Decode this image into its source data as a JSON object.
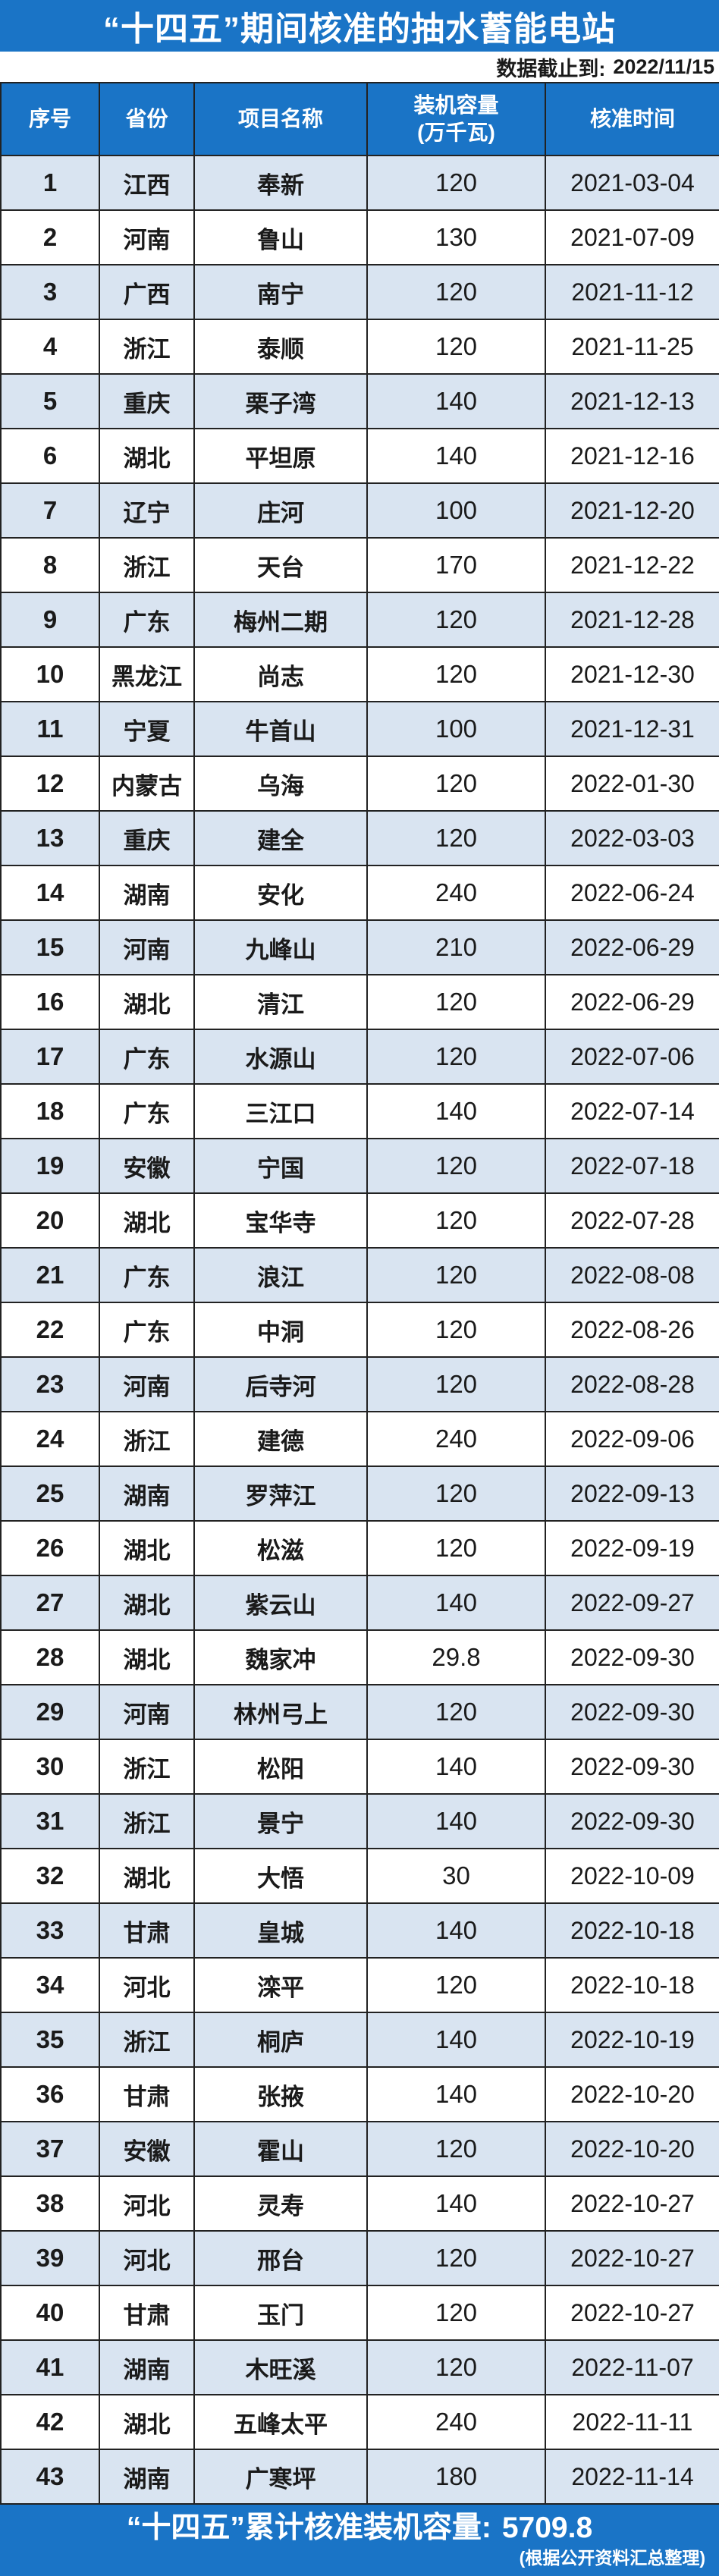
{
  "page": {
    "title": "“十四五”期间核准的抽水蓄能电站",
    "subtitle_label": "数据截止到:",
    "subtitle_value": "2022/11/15",
    "footer_total_label": "“十四五”累计核准装机容量:",
    "footer_total_value": "5709.8",
    "footer_note": "(根据公开资料汇总整理)"
  },
  "colors": {
    "primary_blue": "#1a74c6",
    "row_alt_blue": "#d9e4f1",
    "row_white": "#ffffff",
    "border_dark": "#222222",
    "text_dark": "#1a1a1a",
    "text_white": "#ffffff"
  },
  "table": {
    "headers_display": [
      "序号",
      "省份",
      "项目名称",
      "装机容量\n(万千瓦)",
      "核准时间"
    ]
  },
  "chart_data": {
    "type": "table",
    "title": "“十四五”期间核准的抽水蓄能电站",
    "data_cutoff": "2022/11/15",
    "columns": [
      "序号",
      "省份",
      "项目名称",
      "装机容量(万千瓦)",
      "核准时间"
    ],
    "rows": [
      [
        "1",
        "江西",
        "奉新",
        "120",
        "2021-03-04"
      ],
      [
        "2",
        "河南",
        "鲁山",
        "130",
        "2021-07-09"
      ],
      [
        "3",
        "广西",
        "南宁",
        "120",
        "2021-11-12"
      ],
      [
        "4",
        "浙江",
        "泰顺",
        "120",
        "2021-11-25"
      ],
      [
        "5",
        "重庆",
        "栗子湾",
        "140",
        "2021-12-13"
      ],
      [
        "6",
        "湖北",
        "平坦原",
        "140",
        "2021-12-16"
      ],
      [
        "7",
        "辽宁",
        "庄河",
        "100",
        "2021-12-20"
      ],
      [
        "8",
        "浙江",
        "天台",
        "170",
        "2021-12-22"
      ],
      [
        "9",
        "广东",
        "梅州二期",
        "120",
        "2021-12-28"
      ],
      [
        "10",
        "黑龙江",
        "尚志",
        "120",
        "2021-12-30"
      ],
      [
        "11",
        "宁夏",
        "牛首山",
        "100",
        "2021-12-31"
      ],
      [
        "12",
        "内蒙古",
        "乌海",
        "120",
        "2022-01-30"
      ],
      [
        "13",
        "重庆",
        "建全",
        "120",
        "2022-03-03"
      ],
      [
        "14",
        "湖南",
        "安化",
        "240",
        "2022-06-24"
      ],
      [
        "15",
        "河南",
        "九峰山",
        "210",
        "2022-06-29"
      ],
      [
        "16",
        "湖北",
        "清江",
        "120",
        "2022-06-29"
      ],
      [
        "17",
        "广东",
        "水源山",
        "120",
        "2022-07-06"
      ],
      [
        "18",
        "广东",
        "三江口",
        "140",
        "2022-07-14"
      ],
      [
        "19",
        "安徽",
        "宁国",
        "120",
        "2022-07-18"
      ],
      [
        "20",
        "湖北",
        "宝华寺",
        "120",
        "2022-07-28"
      ],
      [
        "21",
        "广东",
        "浪江",
        "120",
        "2022-08-08"
      ],
      [
        "22",
        "广东",
        "中洞",
        "120",
        "2022-08-26"
      ],
      [
        "23",
        "河南",
        "后寺河",
        "120",
        "2022-08-28"
      ],
      [
        "24",
        "浙江",
        "建德",
        "240",
        "2022-09-06"
      ],
      [
        "25",
        "湖南",
        "罗萍江",
        "120",
        "2022-09-13"
      ],
      [
        "26",
        "湖北",
        "松滋",
        "120",
        "2022-09-19"
      ],
      [
        "27",
        "湖北",
        "紫云山",
        "140",
        "2022-09-27"
      ],
      [
        "28",
        "湖北",
        "魏家冲",
        "29.8",
        "2022-09-30"
      ],
      [
        "29",
        "河南",
        "林州弓上",
        "120",
        "2022-09-30"
      ],
      [
        "30",
        "浙江",
        "松阳",
        "140",
        "2022-09-30"
      ],
      [
        "31",
        "浙江",
        "景宁",
        "140",
        "2022-09-30"
      ],
      [
        "32",
        "湖北",
        "大悟",
        "30",
        "2022-10-09"
      ],
      [
        "33",
        "甘肃",
        "皇城",
        "140",
        "2022-10-18"
      ],
      [
        "34",
        "河北",
        "滦平",
        "120",
        "2022-10-18"
      ],
      [
        "35",
        "浙江",
        "桐庐",
        "140",
        "2022-10-19"
      ],
      [
        "36",
        "甘肃",
        "张掖",
        "140",
        "2022-10-20"
      ],
      [
        "37",
        "安徽",
        "霍山",
        "120",
        "2022-10-20"
      ],
      [
        "38",
        "河北",
        "灵寿",
        "140",
        "2022-10-27"
      ],
      [
        "39",
        "河北",
        "邢台",
        "120",
        "2022-10-27"
      ],
      [
        "40",
        "甘肃",
        "玉门",
        "120",
        "2022-10-27"
      ],
      [
        "41",
        "湖南",
        "木旺溪",
        "120",
        "2022-11-07"
      ],
      [
        "42",
        "湖北",
        "五峰太平",
        "240",
        "2022-11-11"
      ],
      [
        "43",
        "湖南",
        "广寒坪",
        "180",
        "2022-11-14"
      ]
    ],
    "total_capacity": 5709.8,
    "total_label": "“十四五”累计核准装机容量: 5709.8",
    "source_note": "(根据公开资料汇总整理)"
  }
}
